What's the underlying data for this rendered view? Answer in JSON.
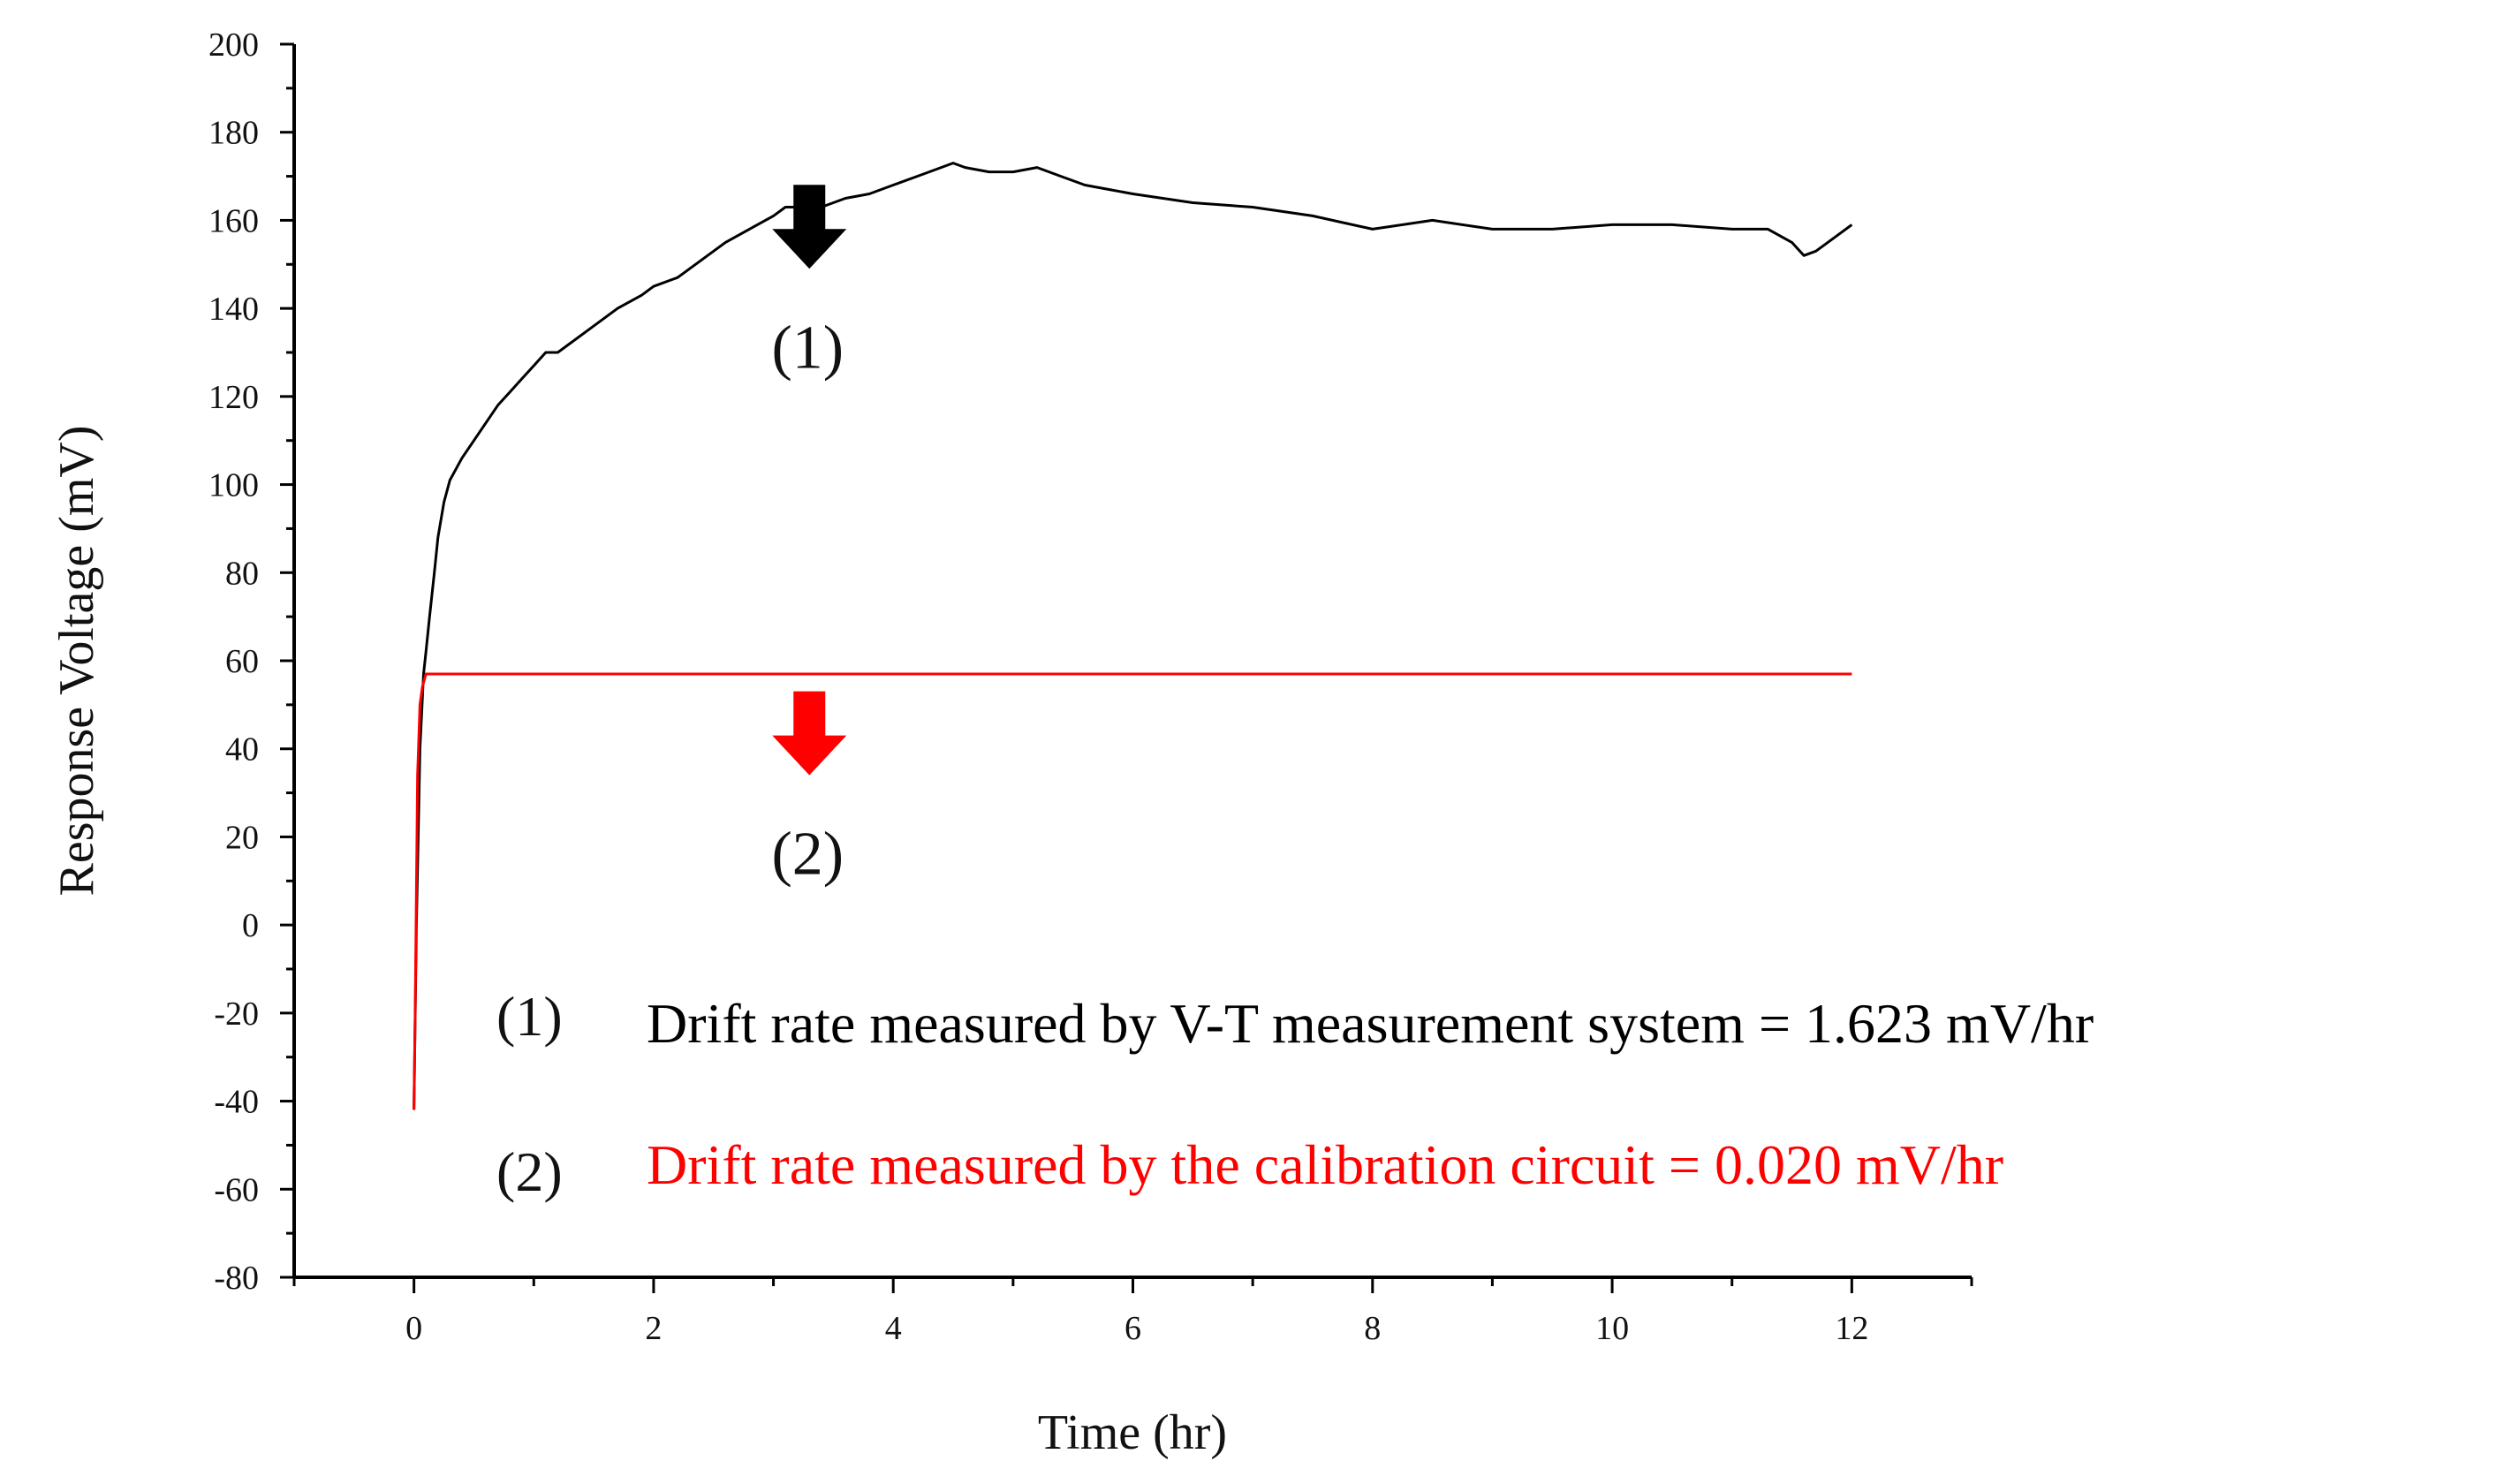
{
  "chart_data": {
    "type": "line",
    "title": "",
    "xlabel": "Time (hr)",
    "ylabel": "Response Voltage (mV)",
    "xlim": [
      -1,
      13
    ],
    "ylim": [
      -80,
      200
    ],
    "xticks": [
      0,
      2,
      4,
      6,
      8,
      10,
      12
    ],
    "yticks": [
      200,
      180,
      160,
      140,
      120,
      100,
      80,
      60,
      40,
      20,
      0,
      -20,
      -40,
      -60,
      -80
    ],
    "grid": false,
    "series": [
      {
        "name": "(1)",
        "color": "#000000",
        "x": [
          0.0,
          0.02,
          0.05,
          0.08,
          0.1,
          0.13,
          0.17,
          0.2,
          0.25,
          0.3,
          0.4,
          0.5,
          0.6,
          0.7,
          0.8,
          0.9,
          1.0,
          1.1,
          1.2,
          1.3,
          1.5,
          1.7,
          1.9,
          2.0,
          2.2,
          2.4,
          2.6,
          2.8,
          3.0,
          3.1,
          3.2,
          3.3,
          3.4,
          3.5,
          3.6,
          3.8,
          4.0,
          4.2,
          4.4,
          4.5,
          4.6,
          4.8,
          5.0,
          5.2,
          5.4,
          5.6,
          5.8,
          6.0,
          6.5,
          7.0,
          7.5,
          8.0,
          8.5,
          9.0,
          9.5,
          10.0,
          10.5,
          11.0,
          11.3,
          11.5,
          11.6,
          11.7,
          11.8,
          11.9,
          12.0
        ],
        "y": [
          -42,
          0,
          40,
          57,
          62,
          70,
          80,
          88,
          96,
          101,
          106,
          110,
          114,
          118,
          121,
          124,
          127,
          130,
          130,
          132,
          136,
          140,
          143,
          145,
          147,
          151,
          155,
          158,
          161,
          163,
          163,
          162,
          163,
          164,
          165,
          166,
          168,
          170,
          172,
          173,
          172,
          171,
          171,
          172,
          170,
          168,
          167,
          166,
          164,
          163,
          161,
          158,
          160,
          158,
          158,
          159,
          159,
          158,
          158,
          155,
          152,
          153,
          155,
          157,
          159
        ]
      },
      {
        "name": "(2)",
        "color": "#ff0000",
        "x": [
          0.0,
          0.01,
          0.03,
          0.05,
          0.07,
          0.1,
          12.0
        ],
        "y": [
          -42,
          -20,
          34,
          50,
          54,
          57,
          57
        ]
      }
    ],
    "annotations": [
      {
        "marker": "(1)",
        "arrow_color": "#000000",
        "x": 3.3,
        "y_tip": 149
      },
      {
        "marker": "(2)",
        "arrow_color": "#ff0000",
        "x": 3.3,
        "y_tip": 34
      }
    ],
    "legend": [
      {
        "marker": "(1)",
        "text": "Drift rate measured by V-T measurement system = 1.623 mV/hr",
        "color": "#000000"
      },
      {
        "marker": "(2)",
        "text": "Drift rate measured by the calibration circuit = 0.020 mV/hr",
        "color": "#ff0000"
      }
    ],
    "legend_position": "bottom-right"
  }
}
